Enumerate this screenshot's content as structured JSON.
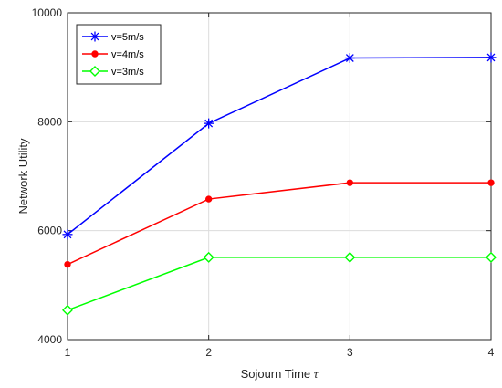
{
  "chart_data": {
    "type": "line",
    "title": "",
    "xlabel": "Sojourn Time",
    "xlabel_symbol": "τ",
    "ylabel": "Network Utility",
    "x": [
      1,
      2,
      3,
      4
    ],
    "xlim": [
      1,
      4
    ],
    "ylim": [
      4000,
      10000
    ],
    "xticks": [
      "1",
      "2",
      "3",
      "4"
    ],
    "yticks": [
      "4000",
      "6000",
      "8000",
      "10000"
    ],
    "grid": true,
    "legend_position": "top-left",
    "series": [
      {
        "name": "v=5m/s",
        "values": [
          5930,
          7970,
          9170,
          9180
        ],
        "color": "#0000ff",
        "marker": "asterisk"
      },
      {
        "name": "v=4m/s",
        "values": [
          5380,
          6580,
          6880,
          6880
        ],
        "color": "#ff0000",
        "marker": "filled-circle"
      },
      {
        "name": "v=3m/s",
        "values": [
          4540,
          5510,
          5510,
          5510
        ],
        "color": "#00ff00",
        "marker": "diamond"
      }
    ]
  }
}
